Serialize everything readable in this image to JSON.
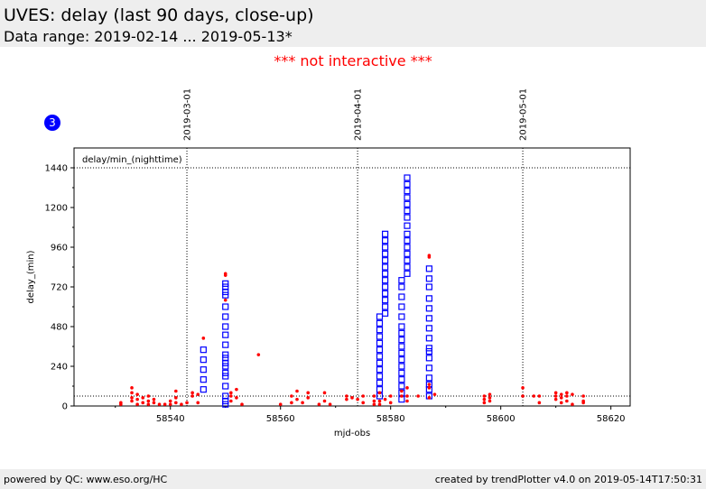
{
  "header": {
    "title": "UVES: delay (last 90 days, close-up)",
    "subtitle": "Data range: 2019-02-14 ... 2019-05-13*"
  },
  "notice": "*** not interactive ***",
  "badge": "3",
  "footer": {
    "left": "powered by QC: www.eso.org/HC",
    "right": "created by trendPlotter v4.0 on 2019-05-14T17:50:31"
  },
  "colors": {
    "primary_series": "#0000ff",
    "secondary_series": "#ff0000",
    "badge": "#0000ff"
  },
  "chart_data": {
    "type": "scatter",
    "title": "",
    "xlabel": "mjd-obs",
    "ylabel": "delay_(min)",
    "inner_label": "delay/min_(nighttime)",
    "xlim": [
      58522.5,
      58623.5
    ],
    "ylim": [
      0,
      1560
    ],
    "xticks": [
      58540,
      58560,
      58580,
      58600,
      58620
    ],
    "yticks": [
      0,
      240,
      480,
      720,
      960,
      1200,
      1440
    ],
    "grid": false,
    "reference_lines": [
      {
        "axis": "y",
        "value": 1440,
        "style": "dotted"
      },
      {
        "axis": "y",
        "value": 60,
        "style": "dotted"
      }
    ],
    "date_markers": [
      {
        "label": "2019-03-01",
        "x": 58543.0
      },
      {
        "label": "2019-04-01",
        "x": 58574.0
      },
      {
        "label": "2019-05-01",
        "x": 58604.0
      }
    ],
    "series": [
      {
        "marker": "open-square",
        "color": "#0000ff",
        "points": [
          [
            58546,
            100
          ],
          [
            58546,
            160
          ],
          [
            58546,
            220
          ],
          [
            58546,
            280
          ],
          [
            58546,
            340
          ],
          [
            58550,
            10
          ],
          [
            58550,
            30
          ],
          [
            58550,
            60
          ],
          [
            58550,
            120
          ],
          [
            58550,
            180
          ],
          [
            58550,
            200
          ],
          [
            58550,
            240
          ],
          [
            58550,
            260
          ],
          [
            58550,
            290
          ],
          [
            58550,
            310
          ],
          [
            58550,
            370
          ],
          [
            58550,
            430
          ],
          [
            58550,
            480
          ],
          [
            58550,
            540
          ],
          [
            58550,
            600
          ],
          [
            58550,
            670
          ],
          [
            58550,
            690
          ],
          [
            58550,
            720
          ],
          [
            58550,
            740
          ],
          [
            58578,
            60
          ],
          [
            58578,
            100
          ],
          [
            58578,
            140
          ],
          [
            58578,
            180
          ],
          [
            58578,
            220
          ],
          [
            58578,
            260
          ],
          [
            58578,
            300
          ],
          [
            58578,
            340
          ],
          [
            58578,
            380
          ],
          [
            58578,
            420
          ],
          [
            58578,
            460
          ],
          [
            58578,
            500
          ],
          [
            58578,
            540
          ],
          [
            58579,
            560
          ],
          [
            58579,
            600
          ],
          [
            58579,
            640
          ],
          [
            58579,
            680
          ],
          [
            58579,
            720
          ],
          [
            58579,
            760
          ],
          [
            58579,
            800
          ],
          [
            58579,
            840
          ],
          [
            58579,
            880
          ],
          [
            58579,
            920
          ],
          [
            58579,
            960
          ],
          [
            58579,
            1000
          ],
          [
            58579,
            1040
          ],
          [
            58582,
            40
          ],
          [
            58582,
            80
          ],
          [
            58582,
            120
          ],
          [
            58582,
            160
          ],
          [
            58582,
            200
          ],
          [
            58582,
            240
          ],
          [
            58582,
            280
          ],
          [
            58582,
            320
          ],
          [
            58582,
            360
          ],
          [
            58582,
            400
          ],
          [
            58582,
            440
          ],
          [
            58582,
            480
          ],
          [
            58582,
            540
          ],
          [
            58582,
            600
          ],
          [
            58582,
            660
          ],
          [
            58582,
            720
          ],
          [
            58582,
            760
          ],
          [
            58583,
            800
          ],
          [
            58583,
            840
          ],
          [
            58583,
            880
          ],
          [
            58583,
            920
          ],
          [
            58583,
            960
          ],
          [
            58583,
            1000
          ],
          [
            58583,
            1040
          ],
          [
            58583,
            1090
          ],
          [
            58583,
            1140
          ],
          [
            58583,
            1180
          ],
          [
            58583,
            1220
          ],
          [
            58583,
            1260
          ],
          [
            58583,
            1300
          ],
          [
            58583,
            1340
          ],
          [
            58583,
            1380
          ],
          [
            58587,
            60
          ],
          [
            58587,
            100
          ],
          [
            58587,
            130
          ],
          [
            58587,
            170
          ],
          [
            58587,
            230
          ],
          [
            58587,
            290
          ],
          [
            58587,
            330
          ],
          [
            58587,
            350
          ],
          [
            58587,
            410
          ],
          [
            58587,
            470
          ],
          [
            58587,
            530
          ],
          [
            58587,
            590
          ],
          [
            58587,
            650
          ],
          [
            58587,
            720
          ],
          [
            58587,
            770
          ],
          [
            58587,
            830
          ]
        ]
      },
      {
        "marker": "dot",
        "color": "#ff0000",
        "points": [
          [
            58531,
            10
          ],
          [
            58531,
            20
          ],
          [
            58533,
            30
          ],
          [
            58533,
            50
          ],
          [
            58533,
            80
          ],
          [
            58533,
            110
          ],
          [
            58534,
            10
          ],
          [
            58534,
            40
          ],
          [
            58534,
            70
          ],
          [
            58535,
            20
          ],
          [
            58535,
            50
          ],
          [
            58536,
            10
          ],
          [
            58536,
            30
          ],
          [
            58536,
            60
          ],
          [
            58537,
            20
          ],
          [
            58537,
            40
          ],
          [
            58538,
            10
          ],
          [
            58539,
            10
          ],
          [
            58540,
            10
          ],
          [
            58540,
            30
          ],
          [
            58541,
            20
          ],
          [
            58541,
            50
          ],
          [
            58541,
            90
          ],
          [
            58542,
            10
          ],
          [
            58543,
            20
          ],
          [
            58544,
            60
          ],
          [
            58544,
            80
          ],
          [
            58545,
            70
          ],
          [
            58545,
            20
          ],
          [
            58546,
            410
          ],
          [
            58550,
            790
          ],
          [
            58550,
            800
          ],
          [
            58550,
            640
          ],
          [
            58551,
            30
          ],
          [
            58551,
            60
          ],
          [
            58551,
            80
          ],
          [
            58552,
            50
          ],
          [
            58552,
            100
          ],
          [
            58553,
            10
          ],
          [
            58556,
            310
          ],
          [
            58560,
            10
          ],
          [
            58562,
            20
          ],
          [
            58562,
            60
          ],
          [
            58563,
            40
          ],
          [
            58563,
            90
          ],
          [
            58564,
            20
          ],
          [
            58565,
            50
          ],
          [
            58565,
            80
          ],
          [
            58567,
            10
          ],
          [
            58568,
            30
          ],
          [
            58568,
            80
          ],
          [
            58569,
            10
          ],
          [
            58572,
            40
          ],
          [
            58572,
            60
          ],
          [
            58573,
            50
          ],
          [
            58574,
            40
          ],
          [
            58575,
            20
          ],
          [
            58575,
            60
          ],
          [
            58577,
            10
          ],
          [
            58577,
            30
          ],
          [
            58577,
            60
          ],
          [
            58578,
            10
          ],
          [
            58578,
            30
          ],
          [
            58578,
            80
          ],
          [
            58579,
            40
          ],
          [
            58580,
            60
          ],
          [
            58580,
            20
          ],
          [
            58582,
            60
          ],
          [
            58582,
            90
          ],
          [
            58583,
            30
          ],
          [
            58583,
            60
          ],
          [
            58583,
            110
          ],
          [
            58585,
            60
          ],
          [
            58587,
            50
          ],
          [
            58587,
            110
          ],
          [
            58587,
            130
          ],
          [
            58587,
            900
          ],
          [
            58587,
            910
          ],
          [
            58588,
            70
          ],
          [
            58597,
            20
          ],
          [
            58597,
            40
          ],
          [
            58597,
            60
          ],
          [
            58598,
            30
          ],
          [
            58598,
            50
          ],
          [
            58598,
            70
          ],
          [
            58604,
            60
          ],
          [
            58604,
            110
          ],
          [
            58606,
            60
          ],
          [
            58607,
            20
          ],
          [
            58607,
            60
          ],
          [
            58610,
            40
          ],
          [
            58610,
            60
          ],
          [
            58610,
            80
          ],
          [
            58611,
            20
          ],
          [
            58611,
            50
          ],
          [
            58611,
            70
          ],
          [
            58612,
            30
          ],
          [
            58612,
            60
          ],
          [
            58612,
            80
          ],
          [
            58613,
            10
          ],
          [
            58613,
            70
          ],
          [
            58615,
            30
          ],
          [
            58615,
            60
          ],
          [
            58615,
            20
          ]
        ]
      }
    ]
  }
}
